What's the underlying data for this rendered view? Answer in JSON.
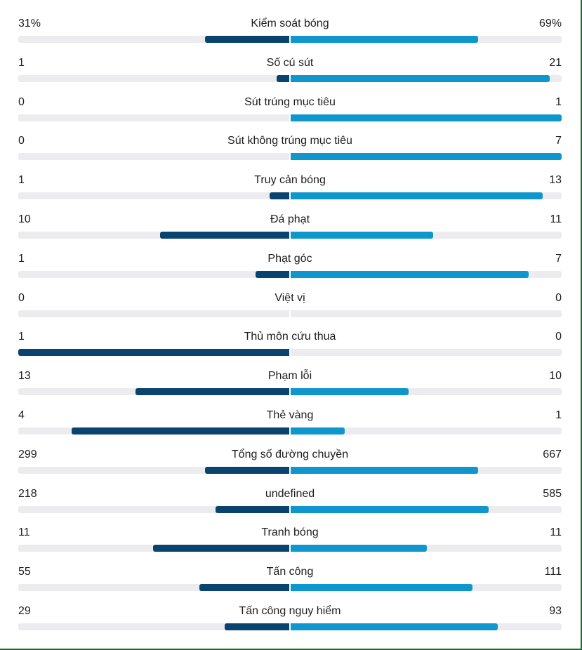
{
  "colors": {
    "home_bar": "#08446f",
    "away_bar": "#0f96cc",
    "track": "#ececef"
  },
  "stats": [
    {
      "label": "Kiểm soát bóng",
      "home": "31%",
      "away": "69%",
      "home_value": 31,
      "away_value": 69
    },
    {
      "label": "Số cú sút",
      "home": "1",
      "away": "21",
      "home_value": 1,
      "away_value": 21
    },
    {
      "label": "Sút trúng mục tiêu",
      "home": "0",
      "away": "1",
      "home_value": 0,
      "away_value": 1
    },
    {
      "label": "Sút không trúng mục tiêu",
      "home": "0",
      "away": "7",
      "home_value": 0,
      "away_value": 7
    },
    {
      "label": "Truy cản bóng",
      "home": "1",
      "away": "13",
      "home_value": 1,
      "away_value": 13
    },
    {
      "label": "Đá phạt",
      "home": "10",
      "away": "11",
      "home_value": 10,
      "away_value": 11
    },
    {
      "label": "Phạt góc",
      "home": "1",
      "away": "7",
      "home_value": 1,
      "away_value": 7
    },
    {
      "label": "Việt vị",
      "home": "0",
      "away": "0",
      "home_value": 0,
      "away_value": 0
    },
    {
      "label": "Thủ môn cứu thua",
      "home": "1",
      "away": "0",
      "home_value": 1,
      "away_value": 0
    },
    {
      "label": "Phạm lỗi",
      "home": "13",
      "away": "10",
      "home_value": 13,
      "away_value": 10
    },
    {
      "label": "Thẻ vàng",
      "home": "4",
      "away": "1",
      "home_value": 4,
      "away_value": 1
    },
    {
      "label": "Tổng số đường chuyền",
      "home": "299",
      "away": "667",
      "home_value": 299,
      "away_value": 667
    },
    {
      "label": "undefined",
      "home": "218",
      "away": "585",
      "home_value": 218,
      "away_value": 585
    },
    {
      "label": "Tranh bóng",
      "home": "11",
      "away": "11",
      "home_value": 11,
      "away_value": 11
    },
    {
      "label": "Tấn công",
      "home": "55",
      "away": "111",
      "home_value": 55,
      "away_value": 111
    },
    {
      "label": "Tấn công nguy hiểm",
      "home": "29",
      "away": "93",
      "home_value": 29,
      "away_value": 93
    }
  ]
}
